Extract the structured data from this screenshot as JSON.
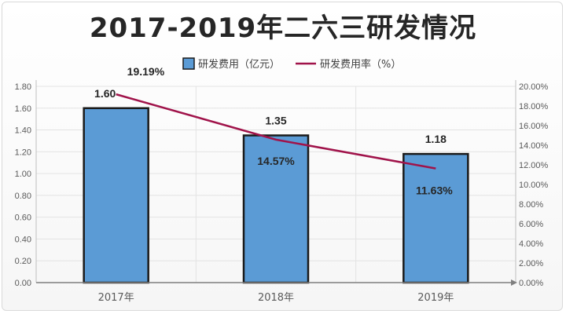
{
  "chart_data": {
    "type": "bar",
    "title": "2017-2019年二六三研发情况",
    "categories": [
      "2017年",
      "2018年",
      "2019年"
    ],
    "series": [
      {
        "name": "研发费用（亿元）",
        "type": "bar",
        "axis": "left",
        "color": "#5b9bd5",
        "values": [
          1.6,
          1.35,
          1.18
        ],
        "labels": [
          "1.60",
          "1.35",
          "1.18"
        ]
      },
      {
        "name": "研发费用率（%）",
        "type": "line",
        "axis": "right",
        "color": "#a0134a",
        "values": [
          19.19,
          14.57,
          11.63
        ],
        "labels": [
          "19.19%",
          "14.57%",
          "11.63%"
        ]
      }
    ],
    "y_left": {
      "min": 0,
      "max": 1.8,
      "step": 0.2,
      "ticks": [
        "0.00",
        "0.20",
        "0.40",
        "0.60",
        "0.80",
        "1.00",
        "1.20",
        "1.40",
        "1.60",
        "1.80"
      ]
    },
    "y_right": {
      "min": 0,
      "max": 20,
      "step": 2,
      "ticks": [
        "0.00%",
        "2.00%",
        "4.00%",
        "6.00%",
        "8.00%",
        "10.00%",
        "12.00%",
        "14.00%",
        "16.00%",
        "18.00%",
        "20.00%"
      ]
    },
    "grid": true,
    "legend": "top-center"
  }
}
